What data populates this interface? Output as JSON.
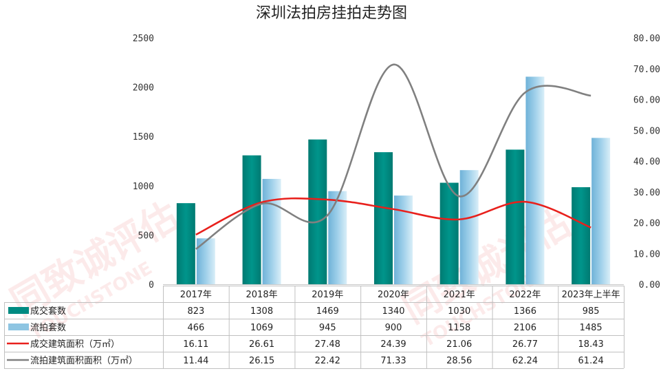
{
  "chart_data": {
    "type": "bar",
    "title": "深圳法拍房挂拍走势图",
    "categories": [
      "2017年",
      "2018年",
      "2019年",
      "2020年",
      "2021年",
      "2022年",
      "2023年上半年"
    ],
    "y_left": {
      "ylim": [
        0,
        2500
      ],
      "ticks": [
        "0",
        "500",
        "1000",
        "1500",
        "2000",
        "2500"
      ]
    },
    "y_right": {
      "ylim": [
        0,
        80
      ],
      "ticks": [
        "0.00",
        "10.00",
        "20.00",
        "30.00",
        "40.00",
        "50.00",
        "60.00",
        "70.00",
        "80.00"
      ]
    },
    "series": [
      {
        "name": "成交套数",
        "kind": "bar",
        "axis": "left",
        "color": "#008b82",
        "values": [
          823,
          1308,
          1469,
          1340,
          1030,
          1366,
          985
        ],
        "labels": [
          "823",
          "1308",
          "1469",
          "1340",
          "1030",
          "1366",
          "985"
        ]
      },
      {
        "name": "流拍套数",
        "kind": "bar",
        "axis": "left",
        "color": "#8ec5e2",
        "values": [
          466,
          1069,
          945,
          900,
          1158,
          2106,
          1485
        ],
        "labels": [
          "466",
          "1069",
          "945",
          "900",
          "1158",
          "2106",
          "1485"
        ]
      },
      {
        "name": "成交建筑面积（万㎡）",
        "kind": "line",
        "axis": "right",
        "color": "#e8201c",
        "values": [
          16.11,
          26.61,
          27.48,
          24.39,
          21.06,
          26.77,
          18.43
        ],
        "labels": [
          "16.11",
          "26.61",
          "27.48",
          "24.39",
          "21.06",
          "26.77",
          "18.43"
        ]
      },
      {
        "name": "流拍建筑面积面积（万㎡）",
        "kind": "line",
        "axis": "right",
        "color": "#808080",
        "values": [
          11.44,
          26.15,
          22.42,
          71.33,
          28.56,
          62.24,
          61.24
        ],
        "labels": [
          "11.44",
          "26.15",
          "22.42",
          "71.33",
          "28.56",
          "62.24",
          "61.24"
        ]
      }
    ],
    "legend": "data-table-left",
    "grid": false
  },
  "watermark": {
    "text": "同致诚评估",
    "subtext": "TOUCHSTONE"
  }
}
